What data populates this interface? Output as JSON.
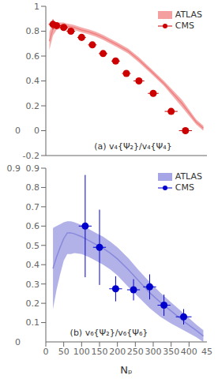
{
  "chart_data": [
    {
      "type": "line",
      "title": "(a) v₄{Ψ₂}/v₄{Ψ₄}",
      "xlim": [
        0,
        450
      ],
      "xticks": [
        0,
        50,
        100,
        150,
        200,
        250,
        300,
        350,
        400
      ],
      "ylim": [
        -0.2,
        1.0
      ],
      "yticks": [
        -0.2,
        0.0,
        0.2,
        0.4,
        0.6,
        0.8,
        1.0
      ],
      "tick_labels": "y",
      "legend": "upper right",
      "series": [
        {
          "name": "ATLAS",
          "type": "band",
          "color": "#f08080",
          "x": [
            10,
            20,
            30,
            40,
            50,
            60,
            70,
            80,
            100,
            120,
            140,
            160,
            180,
            200,
            230,
            260,
            290,
            330,
            380,
            420,
            440
          ],
          "values": [
            0.72,
            0.82,
            0.84,
            0.845,
            0.845,
            0.84,
            0.835,
            0.83,
            0.81,
            0.795,
            0.775,
            0.75,
            0.72,
            0.69,
            0.64,
            0.57,
            0.49,
            0.38,
            0.22,
            0.07,
            0.02
          ],
          "upper": [
            0.79,
            0.875,
            0.87,
            0.87,
            0.87,
            0.86,
            0.855,
            0.85,
            0.83,
            0.815,
            0.795,
            0.77,
            0.74,
            0.71,
            0.66,
            0.59,
            0.51,
            0.4,
            0.25,
            0.09,
            0.04
          ],
          "lower": [
            0.65,
            0.765,
            0.81,
            0.82,
            0.82,
            0.82,
            0.815,
            0.81,
            0.79,
            0.775,
            0.755,
            0.73,
            0.7,
            0.67,
            0.62,
            0.55,
            0.47,
            0.36,
            0.19,
            0.05,
            0.0
          ]
        },
        {
          "name": "CMS",
          "type": "scatter",
          "marker": "circle",
          "color": "#cc0000",
          "x": [
            20,
            30,
            50,
            70,
            100,
            130,
            160,
            195,
            225,
            260,
            300,
            350,
            390
          ],
          "values": [
            0.855,
            0.845,
            0.83,
            0.8,
            0.75,
            0.69,
            0.62,
            0.56,
            0.46,
            0.4,
            0.3,
            0.155,
            0.0
          ],
          "xerr": [
            12,
            12,
            12,
            12,
            12,
            12,
            12,
            12,
            12,
            15,
            15,
            18,
            18
          ],
          "yerr": [
            0.04,
            0.015,
            0.01,
            0.01,
            0.01,
            0.01,
            0.01,
            0.01,
            0.01,
            0.01,
            0.01,
            0.01,
            0.01
          ]
        }
      ],
      "annotations": [
        {
          "text": "0",
          "y": 0
        }
      ]
    },
    {
      "type": "line",
      "title": "(b) v₆{Ψ₂}/v₆{Ψ₆}",
      "xlabel": "Nₚ",
      "xlim": [
        0,
        450
      ],
      "xticks": [
        0,
        50,
        100,
        150,
        200,
        250,
        300,
        350,
        400
      ],
      "ylim": [
        0.0,
        0.9
      ],
      "yticks": [
        0.1,
        0.2,
        0.3,
        0.4,
        0.5,
        0.6,
        0.7,
        0.8,
        0.9
      ],
      "legend": "upper right",
      "series": [
        {
          "name": "ATLAS",
          "type": "band",
          "color": "#8888dd",
          "x": [
            20,
            30,
            40,
            50,
            60,
            70,
            80,
            100,
            120,
            140,
            160,
            180,
            200,
            230,
            260,
            290,
            320,
            350,
            390,
            420,
            440
          ],
          "values": [
            0.38,
            0.44,
            0.49,
            0.535,
            0.565,
            0.565,
            0.56,
            0.545,
            0.525,
            0.505,
            0.485,
            0.46,
            0.43,
            0.375,
            0.315,
            0.255,
            0.205,
            0.16,
            0.1,
            0.06,
            0.03
          ],
          "upper": [
            0.59,
            0.6,
            0.61,
            0.62,
            0.625,
            0.625,
            0.62,
            0.605,
            0.585,
            0.565,
            0.545,
            0.52,
            0.49,
            0.435,
            0.37,
            0.31,
            0.255,
            0.205,
            0.14,
            0.09,
            0.06
          ],
          "lower": [
            0.17,
            0.27,
            0.35,
            0.42,
            0.455,
            0.455,
            0.46,
            0.455,
            0.44,
            0.42,
            0.4,
            0.375,
            0.345,
            0.285,
            0.23,
            0.175,
            0.13,
            0.095,
            0.055,
            0.025,
            0.0
          ]
        },
        {
          "name": "CMS",
          "type": "scatter",
          "marker": "circle",
          "color": "#0000cc",
          "x": [
            110,
            150,
            195,
            245,
            290,
            330,
            385
          ],
          "values": [
            0.6,
            0.49,
            0.275,
            0.27,
            0.285,
            0.19,
            0.13
          ],
          "xerr": [
            18,
            18,
            18,
            18,
            18,
            18,
            22
          ],
          "upper": [
            0.865,
            0.685,
            0.34,
            0.325,
            0.35,
            0.245,
            0.17
          ],
          "lower": [
            0.335,
            0.295,
            0.21,
            0.215,
            0.22,
            0.135,
            0.09
          ]
        }
      ],
      "annotations": [
        {
          "text": "0",
          "y": 0
        },
        {
          "text": "0.9",
          "y": 0.9
        },
        {
          "text": "45",
          "x": 450
        }
      ]
    }
  ]
}
